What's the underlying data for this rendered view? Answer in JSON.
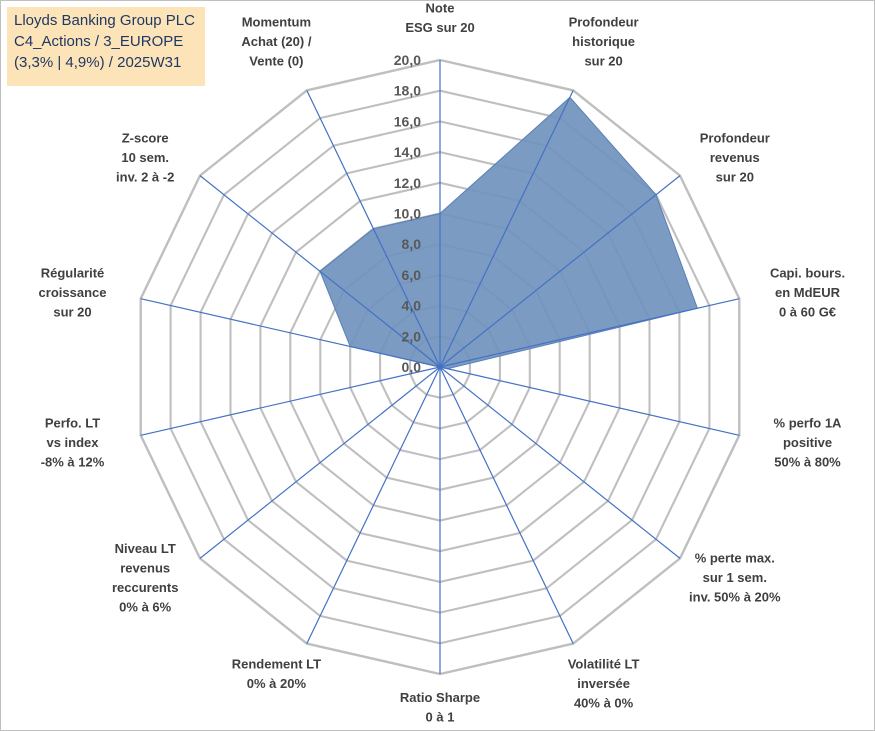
{
  "title_lines": [
    "Lloyds Banking Group PLC",
    "C4_Actions / 3_EUROPE",
    "(3,3% | 4,9%) / 2025W31"
  ],
  "chart_data": {
    "type": "radar",
    "title": "Lloyds Banking Group PLC",
    "subtitle": "C4_Actions / 3_EUROPE (3,3% | 4,9%) / 2025W31",
    "rlim": [
      0,
      20
    ],
    "rticks": [
      "0,0",
      "2,0",
      "4,0",
      "6,0",
      "8,0",
      "10,0",
      "12,0",
      "14,0",
      "16,0",
      "18,0",
      "20,0"
    ],
    "grid": true,
    "categories": [
      [
        "Note",
        "ESG sur 20"
      ],
      [
        "Profondeur",
        "historique",
        "sur 20"
      ],
      [
        "Profondeur",
        "revenus",
        "sur 20"
      ],
      [
        "Capi. bours.",
        "en MdEUR",
        "0 à 60 G€"
      ],
      [
        "% perfo 1A",
        "positive",
        "50% à 80%"
      ],
      [
        "% perte max.",
        "sur 1 sem.",
        "inv. 50% à 20%"
      ],
      [
        "Volatilité LT",
        "inversée",
        "40% à 0%"
      ],
      [
        "Ratio Sharpe",
        "0 à 1"
      ],
      [
        "Rendement LT",
        "0% à 20%"
      ],
      [
        "Niveau LT",
        "revenus",
        "reccurents",
        "0% à 6%"
      ],
      [
        "Perfo. LT",
        "vs index",
        "-8% à 12%"
      ],
      [
        "Régularité",
        "croissance",
        "sur 20"
      ],
      [
        "Z-score",
        "10 sem.",
        "inv. 2 à -2"
      ],
      [
        "Momentum",
        "Achat (20) /",
        "Vente (0)"
      ]
    ],
    "series": [
      {
        "values": [
          10.0,
          19.5,
          18.0,
          17.2,
          0.5,
          0.0,
          0.0,
          0.0,
          0.0,
          0.0,
          0.0,
          6.0,
          10.0,
          10.0
        ],
        "color": "#7092be"
      }
    ],
    "colors": {
      "fill": "#7092be",
      "stroke": "#5b7fb5",
      "grid": "#bfbfbf",
      "spoke": "#4472c4",
      "title_bg": "#fce4b8"
    }
  }
}
